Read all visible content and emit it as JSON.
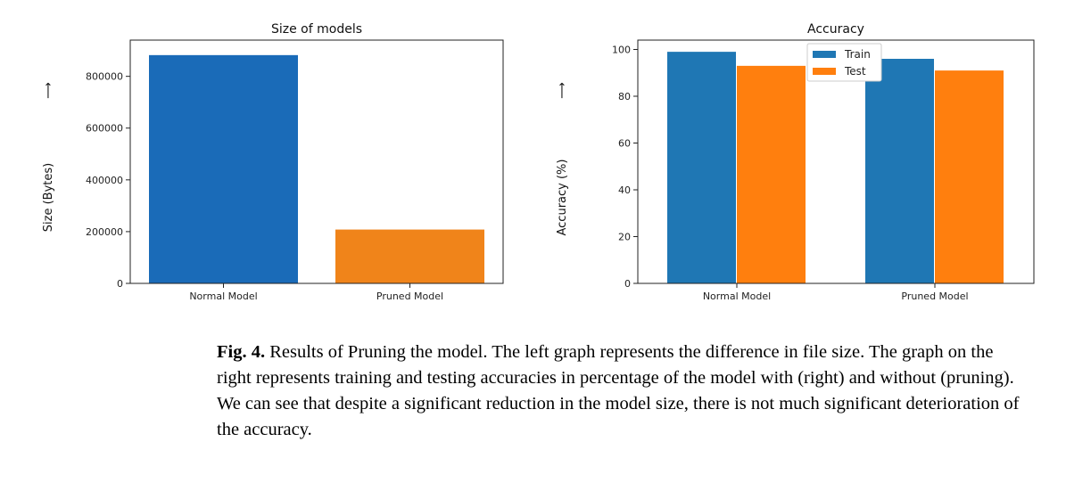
{
  "chart_data": [
    {
      "type": "bar",
      "title": "Size of models",
      "ylabel": "Size (Bytes)",
      "ylabel_arrow": "⟶",
      "xlabel": "",
      "categories": [
        "Normal Model",
        "Pruned Model"
      ],
      "values": [
        882000,
        208000
      ],
      "colors": [
        "#1a6bb8",
        "#f0841a"
      ],
      "ylim": [
        0,
        940000
      ],
      "yticks": [
        0,
        200000,
        400000,
        600000,
        800000
      ],
      "grid": false
    },
    {
      "type": "bar",
      "title": "Accuracy",
      "ylabel": "Accuracy (%)",
      "ylabel_arrow": "⟶",
      "xlabel": "",
      "categories": [
        "Normal Model",
        "Pruned Model"
      ],
      "series": [
        {
          "name": "Train",
          "values": [
            99,
            96
          ],
          "color": "#1f77b4"
        },
        {
          "name": "Test",
          "values": [
            93,
            91
          ],
          "color": "#ff7f0e"
        }
      ],
      "ylim": [
        0,
        104
      ],
      "yticks": [
        0,
        20,
        40,
        60,
        80,
        100
      ],
      "legend": "top-center",
      "grid": false
    }
  ],
  "caption": {
    "label": "Fig. 4.",
    "text": " Results of Pruning the model.   The left  graph  represents the difference in file size. The graph on the right represents training and testing accuracies in percentage of the model with (right)   and   without (pruning).   We can see that despite a significant reduction in the model size, there is not much significant deterioration of the accuracy."
  }
}
